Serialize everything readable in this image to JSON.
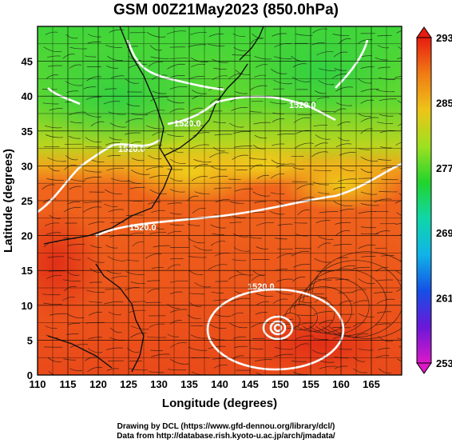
{
  "title": "GSM 00Z21May2023 (850.0hPa)",
  "map": {
    "lon_range": [
      110,
      170
    ],
    "lat_range": [
      0,
      50
    ],
    "x_ticks": [
      "110",
      "115",
      "120",
      "125",
      "130",
      "135",
      "140",
      "145",
      "150",
      "155",
      "160",
      "165"
    ],
    "y_ticks": [
      "0",
      "5",
      "10",
      "15",
      "20",
      "25",
      "30",
      "35",
      "40",
      "45"
    ],
    "xlabel": "Longitude (degrees)",
    "ylabel": "Latitude  (degrees)",
    "grid": true,
    "contour_labels": [
      "1520.0",
      "1520.0",
      "1520.0",
      "1520.0",
      "1520.0"
    ],
    "cyclone_center": {
      "lon": 149,
      "lat": 7
    },
    "colors": {
      "red": "#e8341c",
      "orange": "#f27a1a",
      "yellow": "#eac41a",
      "green": "#3fd33a",
      "contour": "#ffffff",
      "coast": "#111111"
    }
  },
  "colorbar": {
    "labels": [
      "293",
      "285",
      "277",
      "269",
      "261",
      "253"
    ],
    "gradient": [
      "#e81c10",
      "#f07b15",
      "#eec418",
      "#9ee020",
      "#22d42d",
      "#10d6a8",
      "#10b4e8",
      "#1550e6",
      "#6a18d8",
      "#dc18c8"
    ]
  },
  "credits": {
    "line1": "Drawing by DCL (https://www.gfd-dennou.org/library/dcl/)",
    "line2": "Data from http://database.rish.kyoto-u.ac.jp/arch/jmadata/"
  }
}
